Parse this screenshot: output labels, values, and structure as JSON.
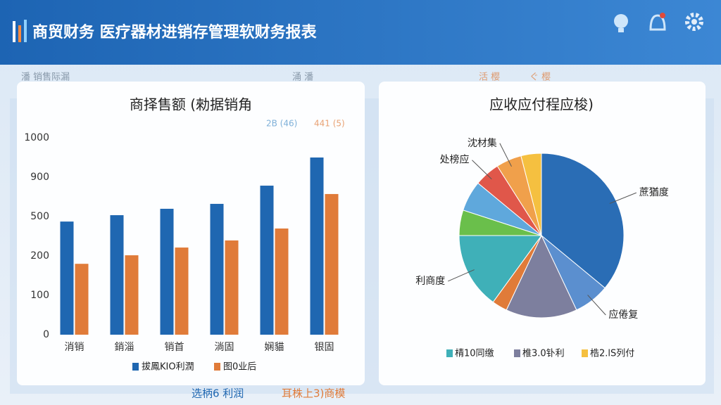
{
  "header": {
    "title": "商贸财务 医疗器材进销存管理软财务报表"
  },
  "background": {
    "labels": [
      "潘 销售际漏",
      "涌 潘",
      "活 樱",
      "ぐ 樱",
      "选柄6 利润",
      "耳株上3)商模"
    ]
  },
  "chart_data": [
    {
      "type": "bar",
      "title": "商择售额 (勑据销角",
      "overlay_legend": [
        "2B (46)",
        "441 (5)"
      ],
      "categories": [
        "消销",
        "銷淄",
        "销首",
        "淌固",
        "娴貓",
        "银固"
      ],
      "series": [
        {
          "name": "拔鳳KIO利潤",
          "color": "#1f67b1",
          "values": [
            462,
            514,
            579,
            629,
            814,
            950
          ]
        },
        {
          "name": "图0业后",
          "color": "#e07b39",
          "values": [
            180,
            205,
            264,
            318,
            409,
            729
          ]
        }
      ],
      "ylim": [
        0,
        1000
      ],
      "yticks": [
        0,
        100,
        200,
        500,
        900,
        1000
      ],
      "grid": false
    },
    {
      "type": "pie",
      "title": "应收应付程应梭)",
      "categories": [
        "蔗猶度",
        "应倦复",
        null,
        null,
        "利商度",
        null,
        null,
        "处榜应",
        "沈材集",
        null
      ],
      "values": [
        36,
        7,
        14,
        3,
        15,
        5,
        6,
        5,
        5,
        4
      ],
      "colors": [
        "#2a6db5",
        "#5b8fcf",
        "#7d7f9e",
        "#e07b39",
        "#3fb0b8",
        "#6abf4b",
        "#5fa8dc",
        "#e0574a",
        "#f0a04b",
        "#f5c040"
      ],
      "legend": [
        {
          "name": "棈10同缴",
          "color": "#3fb0b8"
        },
        {
          "name": "椎3.0钋利",
          "color": "#7d7f9e"
        },
        {
          "name": "梏2.lS列付",
          "color": "#f5c040"
        }
      ]
    }
  ]
}
